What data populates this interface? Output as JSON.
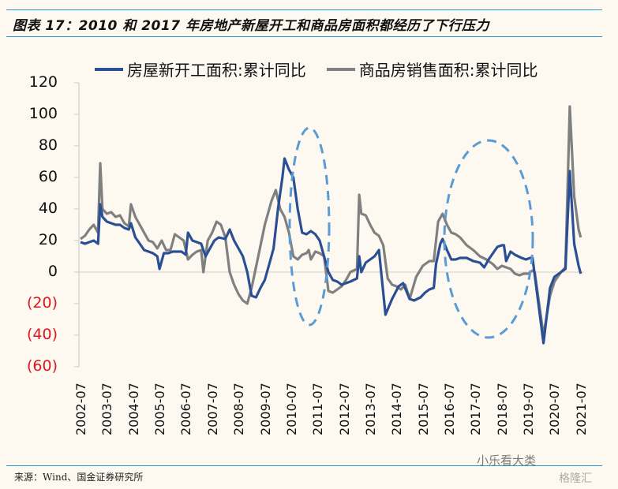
{
  "header": {
    "title": "图表 17：2010 和 2017 年房地产新屋开工和商品房面积都经历了下行压力"
  },
  "footer": {
    "source": "来源：Wind、国金证券研究所",
    "watermark": "小乐看大类",
    "watermark2": "格隆汇"
  },
  "colors": {
    "series_new_starts": "#2b4f94",
    "series_sales": "#808080",
    "ellipse": "#5b9bd5",
    "negative_label": "#e0141e",
    "rule": "#2a9bc6",
    "background": "#fdf9f0"
  },
  "chart_data": {
    "type": "line",
    "title": "图表 17：2010 和 2017 年房地产新屋开工和商品房面积都经历了下行压力",
    "xlabel": "",
    "ylabel": "",
    "ylim": [
      -60,
      120
    ],
    "yticks": [
      120,
      100,
      80,
      60,
      40,
      20,
      0,
      -20,
      -40,
      -60
    ],
    "ytick_labels": [
      "120",
      "100",
      "80",
      "60",
      "40",
      "20",
      "0",
      "(20)",
      "(40)",
      "(60)"
    ],
    "xtick_labels": [
      "2002-07",
      "2003-07",
      "2004-07",
      "2005-07",
      "2006-07",
      "2007-07",
      "2008-07",
      "2009-07",
      "2010-07",
      "2011-07",
      "2012-07",
      "2013-07",
      "2014-07",
      "2015-07",
      "2016-07",
      "2017-07",
      "2018-07",
      "2019-07",
      "2020-07",
      "2021-07"
    ],
    "grid": false,
    "legend_position": "top",
    "legend": [
      "房屋新开工面积:累计同比",
      "商品房销售面积:累计同比"
    ],
    "annotations": [
      {
        "type": "dashed-ellipse",
        "around": "2010-2011"
      },
      {
        "type": "dashed-ellipse",
        "around": "2017-2019"
      }
    ],
    "series": [
      {
        "name": "房屋新开工面积:累计同比",
        "points": [
          [
            "2002-07",
            19
          ],
          [
            "2002-09",
            18
          ],
          [
            "2002-11",
            19
          ],
          [
            "2003-01",
            20
          ],
          [
            "2003-03",
            18
          ],
          [
            "2003-04",
            43
          ],
          [
            "2003-05",
            35
          ],
          [
            "2003-07",
            32
          ],
          [
            "2003-09",
            31
          ],
          [
            "2003-11",
            30
          ],
          [
            "2004-01",
            30
          ],
          [
            "2004-03",
            28
          ],
          [
            "2004-05",
            27
          ],
          [
            "2004-06",
            31
          ],
          [
            "2004-08",
            22
          ],
          [
            "2004-10",
            18
          ],
          [
            "2004-12",
            14
          ],
          [
            "2005-02",
            13
          ],
          [
            "2005-04",
            12
          ],
          [
            "2005-06",
            10
          ],
          [
            "2005-07",
            2
          ],
          [
            "2005-09",
            12
          ],
          [
            "2005-11",
            12
          ],
          [
            "2006-01",
            13
          ],
          [
            "2006-03",
            13
          ],
          [
            "2006-05",
            13
          ],
          [
            "2006-07",
            11
          ],
          [
            "2006-08",
            25
          ],
          [
            "2006-10",
            20
          ],
          [
            "2006-12",
            19
          ],
          [
            "2007-02",
            18
          ],
          [
            "2007-04",
            10
          ],
          [
            "2007-06",
            15
          ],
          [
            "2007-08",
            20
          ],
          [
            "2007-10",
            22
          ],
          [
            "2008-01",
            21
          ],
          [
            "2008-03",
            27
          ],
          [
            "2008-05",
            20
          ],
          [
            "2008-07",
            15
          ],
          [
            "2008-09",
            10
          ],
          [
            "2008-11",
            0
          ],
          [
            "2009-01",
            -15
          ],
          [
            "2009-03",
            -16
          ],
          [
            "2009-05",
            -10
          ],
          [
            "2009-07",
            -5
          ],
          [
            "2009-09",
            5
          ],
          [
            "2009-11",
            15
          ],
          [
            "2010-01",
            40
          ],
          [
            "2010-03",
            60
          ],
          [
            "2010-04",
            72
          ],
          [
            "2010-06",
            65
          ],
          [
            "2010-08",
            60
          ],
          [
            "2010-10",
            40
          ],
          [
            "2010-12",
            25
          ],
          [
            "2011-02",
            24
          ],
          [
            "2011-04",
            26
          ],
          [
            "2011-06",
            24
          ],
          [
            "2011-08",
            20
          ],
          [
            "2011-10",
            10
          ],
          [
            "2011-12",
            0
          ],
          [
            "2012-02",
            -5
          ],
          [
            "2012-04",
            -6
          ],
          [
            "2012-06",
            -8
          ],
          [
            "2012-08",
            -7
          ],
          [
            "2012-10",
            -6
          ],
          [
            "2013-01",
            -4
          ],
          [
            "2013-02",
            10
          ],
          [
            "2013-03",
            0
          ],
          [
            "2013-05",
            6
          ],
          [
            "2013-07",
            8
          ],
          [
            "2013-09",
            10
          ],
          [
            "2013-11",
            14
          ],
          [
            "2014-02",
            -27
          ],
          [
            "2014-05",
            -17
          ],
          [
            "2014-08",
            -9
          ],
          [
            "2014-10",
            -7
          ],
          [
            "2015-01",
            -17
          ],
          [
            "2015-03",
            -18
          ],
          [
            "2015-06",
            -16
          ],
          [
            "2015-08",
            -13
          ],
          [
            "2015-10",
            -11
          ],
          [
            "2015-12",
            -10
          ],
          [
            "2016-01",
            5
          ],
          [
            "2016-03",
            18
          ],
          [
            "2016-04",
            21
          ],
          [
            "2016-06",
            14
          ],
          [
            "2016-08",
            8
          ],
          [
            "2016-10",
            8
          ],
          [
            "2016-12",
            9
          ],
          [
            "2017-03",
            9
          ],
          [
            "2017-06",
            7
          ],
          [
            "2017-09",
            6
          ],
          [
            "2017-11",
            3
          ],
          [
            "2018-01",
            8
          ],
          [
            "2018-03",
            12
          ],
          [
            "2018-05",
            16
          ],
          [
            "2018-07",
            17
          ],
          [
            "2018-08",
            17
          ],
          [
            "2018-09",
            7
          ],
          [
            "2018-11",
            13
          ],
          [
            "2019-01",
            11
          ],
          [
            "2019-04",
            9
          ],
          [
            "2019-06",
            8
          ],
          [
            "2019-08",
            9
          ],
          [
            "2019-09",
            9
          ],
          [
            "2020-02",
            -45
          ],
          [
            "2020-05",
            -10
          ],
          [
            "2020-07",
            -3
          ],
          [
            "2020-10",
            0
          ],
          [
            "2020-12",
            2
          ],
          [
            "2021-02",
            64
          ],
          [
            "2021-04",
            18
          ],
          [
            "2021-06",
            4
          ],
          [
            "2021-07",
            -1
          ]
        ]
      },
      {
        "name": "商品房销售面积:累计同比",
        "points": [
          [
            "2002-07",
            21
          ],
          [
            "2002-09",
            23
          ],
          [
            "2002-11",
            27
          ],
          [
            "2003-01",
            30
          ],
          [
            "2003-03",
            25
          ],
          [
            "2003-04",
            69
          ],
          [
            "2003-05",
            40
          ],
          [
            "2003-07",
            37
          ],
          [
            "2003-09",
            38
          ],
          [
            "2003-11",
            35
          ],
          [
            "2004-01",
            36
          ],
          [
            "2004-03",
            31
          ],
          [
            "2004-05",
            29
          ],
          [
            "2004-06",
            43
          ],
          [
            "2004-08",
            35
          ],
          [
            "2004-10",
            30
          ],
          [
            "2004-12",
            25
          ],
          [
            "2005-02",
            20
          ],
          [
            "2005-04",
            19
          ],
          [
            "2005-06",
            15
          ],
          [
            "2005-08",
            20
          ],
          [
            "2005-10",
            14
          ],
          [
            "2005-12",
            14
          ],
          [
            "2006-02",
            24
          ],
          [
            "2006-04",
            22
          ],
          [
            "2006-06",
            20
          ],
          [
            "2006-08",
            8
          ],
          [
            "2006-10",
            11
          ],
          [
            "2006-12",
            13
          ],
          [
            "2007-02",
            14
          ],
          [
            "2007-03",
            0
          ],
          [
            "2007-05",
            20
          ],
          [
            "2007-07",
            25
          ],
          [
            "2007-09",
            32
          ],
          [
            "2007-11",
            30
          ],
          [
            "2008-01",
            22
          ],
          [
            "2008-03",
            0
          ],
          [
            "2008-05",
            -8
          ],
          [
            "2008-07",
            -14
          ],
          [
            "2008-09",
            -18
          ],
          [
            "2008-11",
            -20
          ],
          [
            "2009-01",
            -10
          ],
          [
            "2009-04",
            10
          ],
          [
            "2009-07",
            30
          ],
          [
            "2009-10",
            45
          ],
          [
            "2009-12",
            52
          ],
          [
            "2010-02",
            40
          ],
          [
            "2010-04",
            35
          ],
          [
            "2010-06",
            25
          ],
          [
            "2010-08",
            10
          ],
          [
            "2010-10",
            8
          ],
          [
            "2010-12",
            11
          ],
          [
            "2011-02",
            12
          ],
          [
            "2011-03",
            14
          ],
          [
            "2011-04",
            8
          ],
          [
            "2011-06",
            13
          ],
          [
            "2011-08",
            12
          ],
          [
            "2011-10",
            10
          ],
          [
            "2011-12",
            -12
          ],
          [
            "2012-02",
            -13
          ],
          [
            "2012-04",
            -11
          ],
          [
            "2012-06",
            -9
          ],
          [
            "2012-08",
            -5
          ],
          [
            "2012-10",
            0
          ],
          [
            "2013-01",
            2
          ],
          [
            "2013-02",
            49
          ],
          [
            "2013-03",
            37
          ],
          [
            "2013-05",
            36
          ],
          [
            "2013-07",
            30
          ],
          [
            "2013-09",
            25
          ],
          [
            "2013-11",
            23
          ],
          [
            "2014-01",
            17
          ],
          [
            "2014-03",
            -4
          ],
          [
            "2014-05",
            -8
          ],
          [
            "2014-07",
            -9
          ],
          [
            "2014-09",
            -11
          ],
          [
            "2014-11",
            -8
          ],
          [
            "2015-01",
            -17
          ],
          [
            "2015-04",
            -3
          ],
          [
            "2015-07",
            4
          ],
          [
            "2015-10",
            7
          ],
          [
            "2015-12",
            7
          ],
          [
            "2016-02",
            32
          ],
          [
            "2016-04",
            37
          ],
          [
            "2016-06",
            30
          ],
          [
            "2016-08",
            25
          ],
          [
            "2016-10",
            24
          ],
          [
            "2016-12",
            22
          ],
          [
            "2017-03",
            17
          ],
          [
            "2017-06",
            14
          ],
          [
            "2017-09",
            10
          ],
          [
            "2017-12",
            8
          ],
          [
            "2018-03",
            5
          ],
          [
            "2018-05",
            2
          ],
          [
            "2018-07",
            4
          ],
          [
            "2018-09",
            3
          ],
          [
            "2018-11",
            2
          ],
          [
            "2019-01",
            -1
          ],
          [
            "2019-03",
            -2
          ],
          [
            "2019-05",
            -1
          ],
          [
            "2019-07",
            -1
          ],
          [
            "2019-09",
            1
          ],
          [
            "2019-10",
            0
          ],
          [
            "2020-02",
            -40
          ],
          [
            "2020-05",
            -15
          ],
          [
            "2020-07",
            -6
          ],
          [
            "2020-10",
            0
          ],
          [
            "2020-12",
            3
          ],
          [
            "2021-02",
            105
          ],
          [
            "2021-04",
            48
          ],
          [
            "2021-06",
            27
          ],
          [
            "2021-07",
            22
          ]
        ]
      }
    ]
  }
}
